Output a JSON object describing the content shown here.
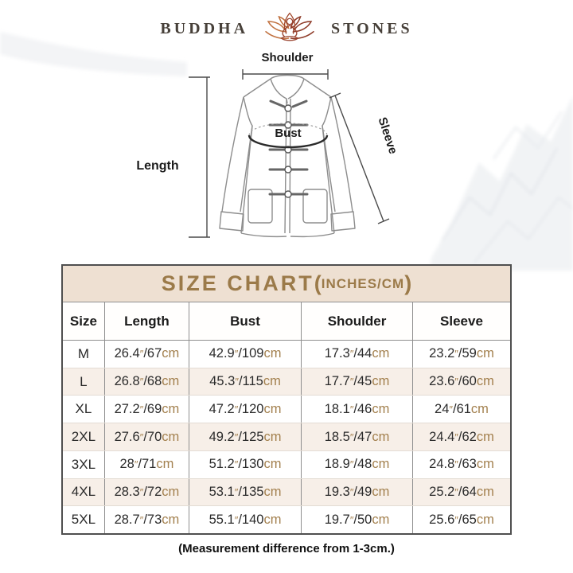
{
  "brand": {
    "word_left": "BUDDHA",
    "word_right": "STONES",
    "icon": "lotus-meditation-icon"
  },
  "diagram": {
    "labels": {
      "shoulder": "Shoulder",
      "sleeve": "Sleeve",
      "bust": "Bust",
      "length": "Length"
    }
  },
  "size_chart": {
    "title_main": "SIZE CHART",
    "title_paren_open": "(",
    "title_sub": "INCHES/CM",
    "title_paren_close": ")",
    "columns": [
      "Size",
      "Length",
      "Bust",
      "Shoulder",
      "Sleeve"
    ],
    "inch_symbol": "″",
    "separator": "/",
    "cm_suffix": "cm",
    "rows": [
      {
        "size": "M",
        "length": {
          "in": "26.4",
          "cm": "67"
        },
        "bust": {
          "in": "42.9",
          "cm": "109"
        },
        "shoulder": {
          "in": "17.3",
          "cm": "44"
        },
        "sleeve": {
          "in": "23.2",
          "cm": "59"
        }
      },
      {
        "size": "L",
        "length": {
          "in": "26.8",
          "cm": "68"
        },
        "bust": {
          "in": "45.3",
          "cm": "115"
        },
        "shoulder": {
          "in": "17.7",
          "cm": "45"
        },
        "sleeve": {
          "in": "23.6",
          "cm": "60"
        }
      },
      {
        "size": "XL",
        "length": {
          "in": "27.2",
          "cm": "69"
        },
        "bust": {
          "in": "47.2",
          "cm": "120"
        },
        "shoulder": {
          "in": "18.1",
          "cm": "46"
        },
        "sleeve": {
          "in": "24",
          "cm": "61"
        }
      },
      {
        "size": "2XL",
        "length": {
          "in": "27.6",
          "cm": "70"
        },
        "bust": {
          "in": "49.2",
          "cm": "125"
        },
        "shoulder": {
          "in": "18.5",
          "cm": "47"
        },
        "sleeve": {
          "in": "24.4",
          "cm": "62"
        }
      },
      {
        "size": "3XL",
        "length": {
          "in": "28",
          "cm": "71"
        },
        "bust": {
          "in": "51.2",
          "cm": "130"
        },
        "shoulder": {
          "in": "18.9",
          "cm": "48"
        },
        "sleeve": {
          "in": "24.8",
          "cm": "63"
        }
      },
      {
        "size": "4XL",
        "length": {
          "in": "28.3",
          "cm": "72"
        },
        "bust": {
          "in": "53.1",
          "cm": "135"
        },
        "shoulder": {
          "in": "19.3",
          "cm": "49"
        },
        "sleeve": {
          "in": "25.2",
          "cm": "64"
        }
      },
      {
        "size": "5XL",
        "length": {
          "in": "28.7",
          "cm": "73"
        },
        "bust": {
          "in": "55.1",
          "cm": "140"
        },
        "shoulder": {
          "in": "19.7",
          "cm": "50"
        },
        "sleeve": {
          "in": "25.6",
          "cm": "65"
        }
      }
    ]
  },
  "footer_note": "(Measurement difference from 1-3cm.)",
  "colors": {
    "header_band_bg": "#eee0d2",
    "title_text": "#9b7a49",
    "unit_text": "#a3804e",
    "alt_row_bg": "#f7efe8",
    "table_border": "#4f4f4f",
    "lotus_left": "#c0703e",
    "lotus_right": "#8e3b28"
  }
}
